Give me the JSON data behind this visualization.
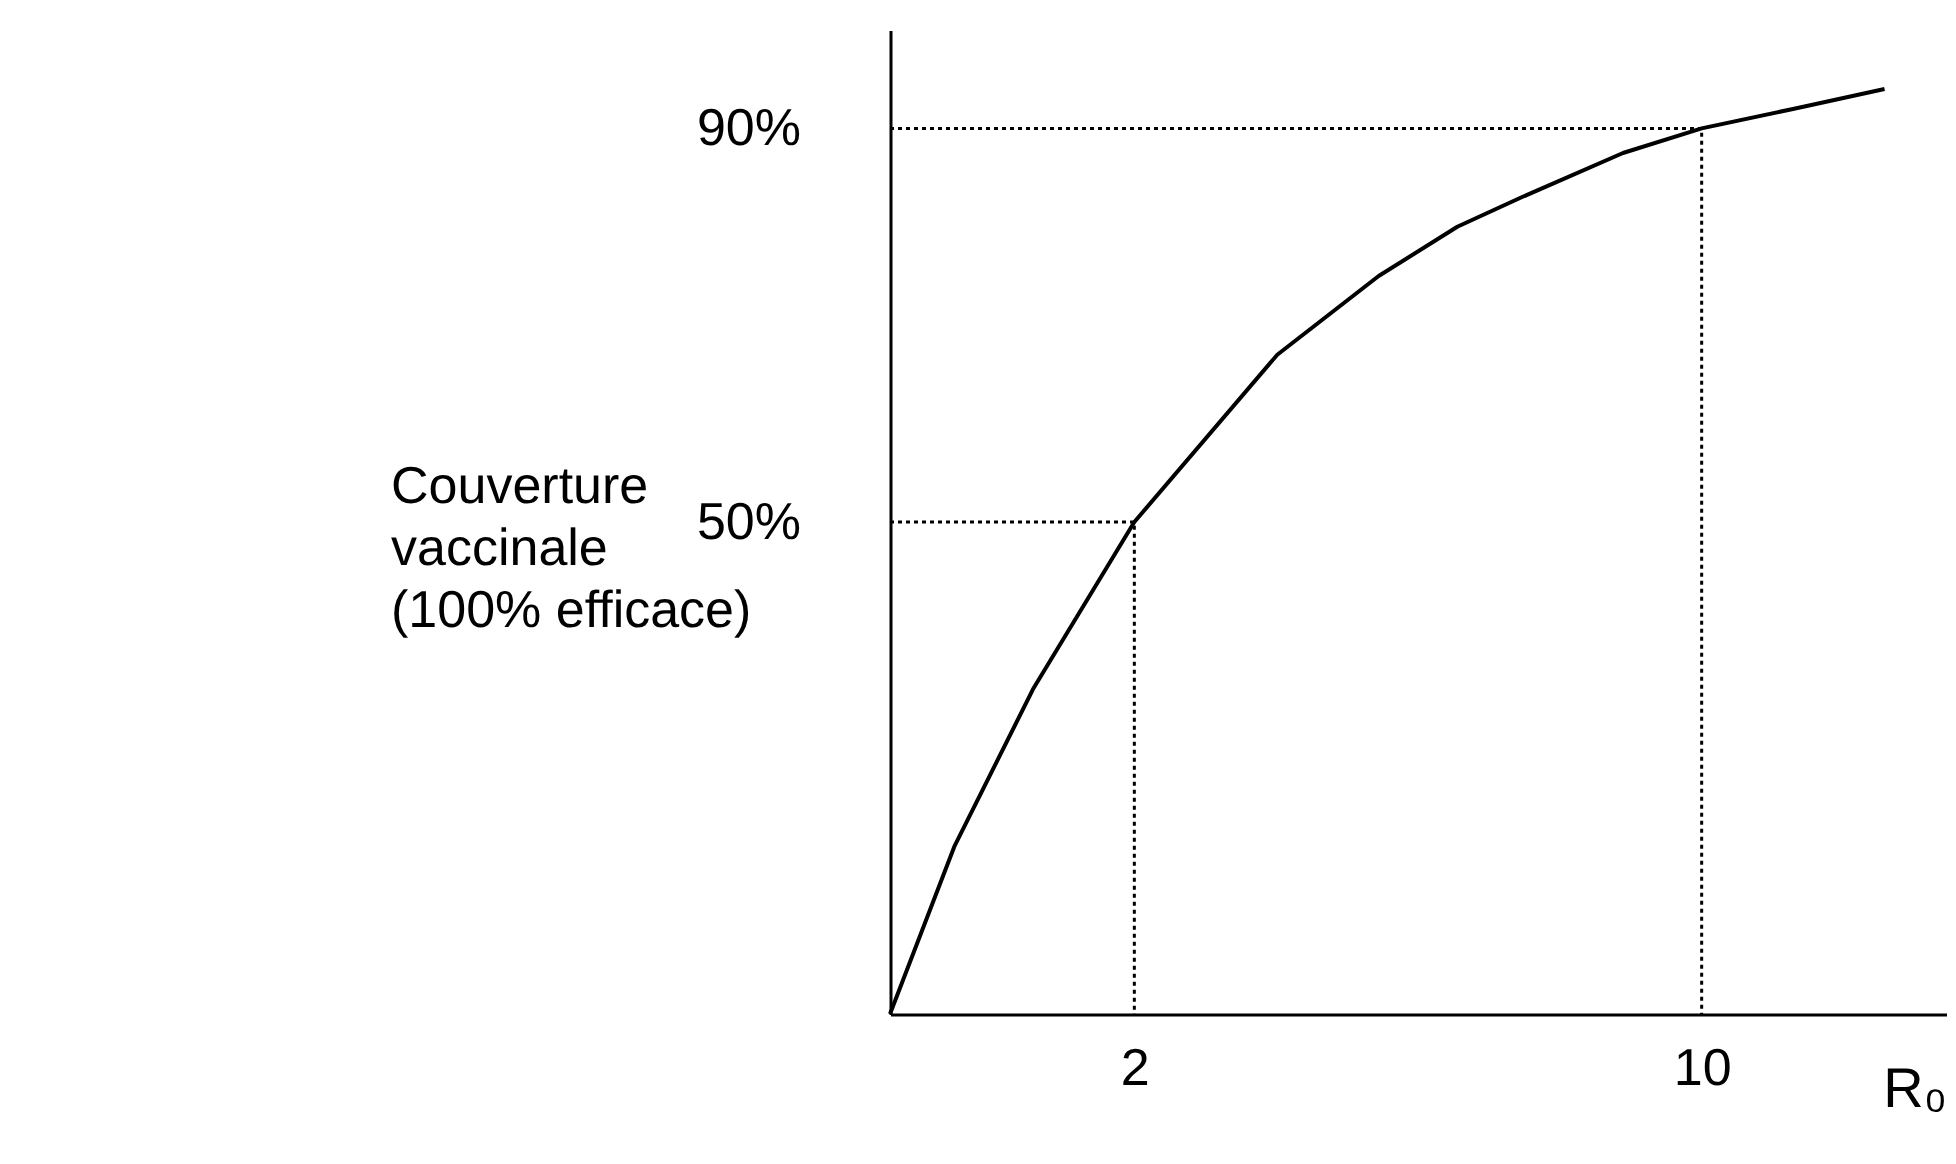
{
  "chart_data": {
    "type": "line",
    "xlabel": "R₀",
    "ylabel": "Couverture vaccinale (100% efficace)",
    "log": "x",
    "xlim": [
      1,
      20
    ],
    "xticks": [
      2,
      10
    ],
    "ylim": [
      0,
      100
    ],
    "yticks": [
      {
        "value": 50,
        "label": "50%"
      },
      {
        "value": 90,
        "label": "90%"
      }
    ],
    "grid": false,
    "marker": "none",
    "series": [
      {
        "color": "#000000",
        "line_style": "solid",
        "x": [
          1,
          1.2,
          1.5,
          2,
          3,
          4,
          5,
          6,
          8,
          10,
          13,
          16.8
        ],
        "values": [
          0,
          17,
          33,
          50,
          67,
          75,
          80,
          83,
          87.5,
          90,
          92,
          94
        ]
      },
      {
        "color": "#000000",
        "line_style": "dotted",
        "x": [
          1,
          2,
          2
        ],
        "values": [
          50,
          50,
          0
        ]
      },
      {
        "color": "#000000",
        "line_style": "dotted",
        "x": [
          1,
          10,
          10
        ],
        "values": [
          90,
          90,
          0
        ]
      }
    ]
  }
}
